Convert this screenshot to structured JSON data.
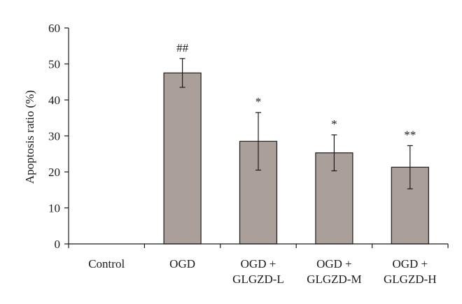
{
  "chart_data": {
    "type": "bar",
    "categories": [
      "Control",
      "OGD",
      "OGD + GLGZD-L",
      "OGD + GLGZD-M",
      "OGD + GLGZD-H"
    ],
    "category_lines": [
      [
        "Control"
      ],
      [
        "OGD"
      ],
      [
        "OGD +",
        "GLGZD-L"
      ],
      [
        "OGD +",
        "GLGZD-M"
      ],
      [
        "OGD +",
        "GLGZD-H"
      ]
    ],
    "values": [
      0,
      47.5,
      28.5,
      25.3,
      21.3
    ],
    "errors": [
      0,
      4.0,
      8.0,
      5.0,
      6.0
    ],
    "significance": [
      "",
      "##",
      "*",
      "*",
      "**"
    ],
    "ylabel": "Apoptosis ratio (%)",
    "ylim": [
      0,
      60
    ],
    "yticks": [
      0,
      10,
      20,
      30,
      40,
      50,
      60
    ],
    "bar_color": "#aba099",
    "grid": false,
    "legend": "none"
  }
}
